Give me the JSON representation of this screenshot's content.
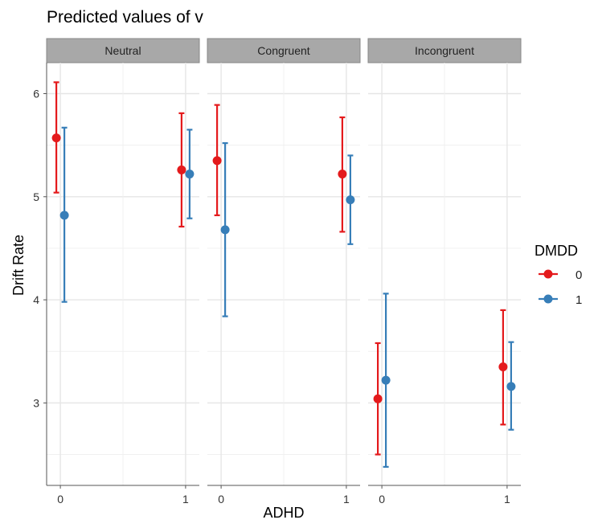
{
  "chart_data": {
    "type": "scatter",
    "title": "Predicted values of v",
    "xlabel": "ADHD",
    "ylabel": "Drift Rate",
    "x_categories": [
      "0",
      "1"
    ],
    "ylim": [
      2.2,
      6.3
    ],
    "y_ticks": [
      3,
      4,
      5,
      6
    ],
    "grid": true,
    "error_bars": true,
    "legend": {
      "title": "DMDD",
      "position": "right"
    },
    "panels": [
      {
        "name": "Neutral",
        "series": [
          {
            "name": "0",
            "color": "#e41a1c",
            "x": [
              "0",
              "1"
            ],
            "y": [
              5.57,
              5.26
            ],
            "ymin": [
              5.04,
              4.71
            ],
            "ymax": [
              6.11,
              5.81
            ]
          },
          {
            "name": "1",
            "color": "#377eb8",
            "x": [
              "0",
              "1"
            ],
            "y": [
              4.82,
              5.22
            ],
            "ymin": [
              3.98,
              4.79
            ],
            "ymax": [
              5.67,
              5.65
            ]
          }
        ]
      },
      {
        "name": "Congruent",
        "series": [
          {
            "name": "0",
            "color": "#e41a1c",
            "x": [
              "0",
              "1"
            ],
            "y": [
              5.35,
              5.22
            ],
            "ymin": [
              4.82,
              4.66
            ],
            "ymax": [
              5.89,
              5.77
            ]
          },
          {
            "name": "1",
            "color": "#377eb8",
            "x": [
              "0",
              "1"
            ],
            "y": [
              4.68,
              4.97
            ],
            "ymin": [
              3.84,
              4.54
            ],
            "ymax": [
              5.52,
              5.4
            ]
          }
        ]
      },
      {
        "name": "Incongruent",
        "series": [
          {
            "name": "0",
            "color": "#e41a1c",
            "x": [
              "0",
              "1"
            ],
            "y": [
              3.04,
              3.35
            ],
            "ymin": [
              2.5,
              2.79
            ],
            "ymax": [
              3.58,
              3.9
            ]
          },
          {
            "name": "1",
            "color": "#377eb8",
            "x": [
              "0",
              "1"
            ],
            "y": [
              3.22,
              3.16
            ],
            "ymin": [
              2.38,
              2.74
            ],
            "ymax": [
              4.06,
              3.59
            ]
          }
        ]
      }
    ]
  }
}
